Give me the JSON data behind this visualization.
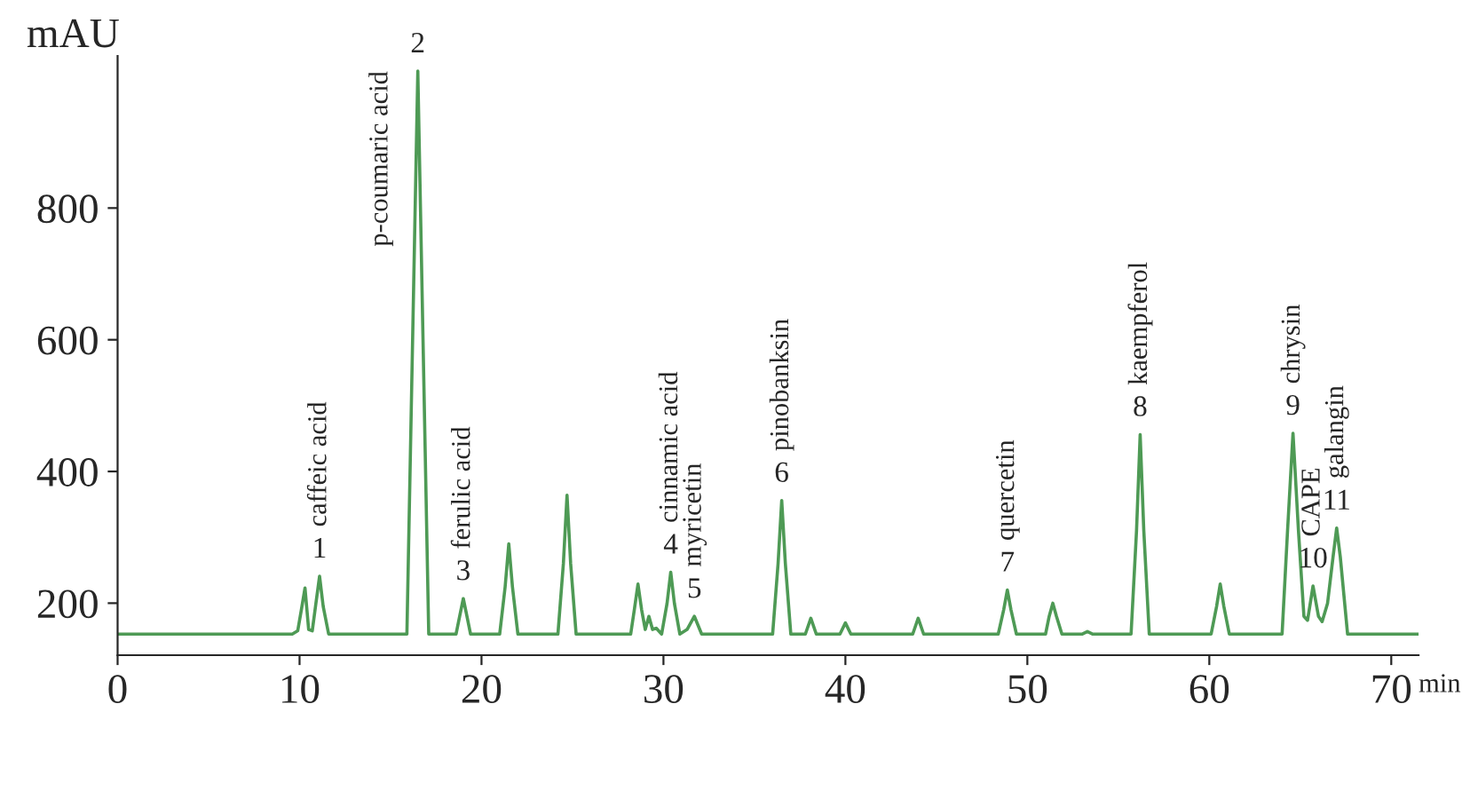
{
  "chart_data": {
    "type": "line",
    "xlabel": "min",
    "ylabel": "mAU",
    "xlim": [
      0,
      71.5
    ],
    "ylim": [
      121,
      1031
    ],
    "xticks": [
      0,
      10,
      20,
      30,
      40,
      50,
      60,
      70
    ],
    "yticks": [
      200,
      400,
      600,
      800
    ],
    "grid": false,
    "legend": false,
    "marker": "none",
    "line_style": "solid",
    "series": [
      {
        "color": "#4e9a55",
        "x": [
          0,
          9.6,
          9.9,
          10.1,
          10.3,
          10.5,
          10.7,
          10.9,
          11.1,
          11.3,
          11.6,
          15.9,
          16.2,
          16.5,
          16.8,
          17.1,
          18.6,
          18.8,
          19.0,
          19.2,
          19.4,
          21.0,
          21.3,
          21.5,
          21.7,
          22.0,
          24.2,
          24.5,
          24.7,
          24.9,
          25.2,
          28.2,
          28.4,
          28.6,
          28.8,
          29.0,
          29.2,
          29.4,
          29.6,
          29.9,
          30.2,
          30.4,
          30.6,
          30.9,
          31.3,
          31.7,
          32.1,
          36.0,
          36.3,
          36.5,
          36.7,
          37.0,
          37.8,
          38.1,
          38.4,
          39.7,
          40.0,
          40.3,
          43.7,
          44.0,
          44.3,
          48.4,
          48.7,
          48.9,
          49.1,
          49.4,
          51.0,
          51.2,
          51.4,
          51.6,
          51.9,
          53.0,
          53.3,
          53.6,
          55.7,
          56.0,
          56.2,
          56.4,
          56.7,
          60.1,
          60.4,
          60.6,
          60.8,
          61.1,
          64.0,
          64.3,
          64.6,
          64.9,
          65.2,
          65.4,
          65.7,
          66.0,
          66.2,
          66.5,
          66.8,
          67.0,
          67.2,
          67.6,
          71.5
        ],
        "values": [
          153,
          153,
          158,
          190,
          223,
          160,
          158,
          200,
          241,
          195,
          153,
          153,
          580,
          1008,
          580,
          153,
          153,
          180,
          207,
          180,
          153,
          153,
          225,
          290,
          225,
          153,
          153,
          260,
          364,
          260,
          153,
          153,
          190,
          229,
          190,
          160,
          180,
          160,
          162,
          153,
          200,
          247,
          200,
          153,
          160,
          180,
          153,
          153,
          260,
          356,
          260,
          153,
          153,
          177,
          153,
          153,
          170,
          153,
          153,
          177,
          153,
          153,
          190,
          220,
          190,
          153,
          153,
          180,
          200,
          180,
          153,
          153,
          157,
          153,
          153,
          310,
          456,
          310,
          153,
          153,
          195,
          229,
          195,
          153,
          153,
          310,
          458,
          310,
          180,
          174,
          226,
          180,
          172,
          200,
          270,
          314,
          270,
          153,
          153
        ]
      }
    ],
    "annotations": [
      "caffeic acid",
      {
        "text": "1",
        "x": 11.1,
        "y": 241
      },
      "p-coumaric acid",
      {
        "text": "2",
        "x": 16.5,
        "y": 1008
      },
      "ferulic acid",
      {
        "text": "3",
        "x": 19.0,
        "y": 207
      },
      "cinnamic acid",
      {
        "text": "4",
        "x": 30.4,
        "y": 247
      },
      "myricetin",
      {
        "text": "5",
        "x": 31.7,
        "y": 180
      },
      "pinobanksin",
      {
        "text": "6",
        "x": 36.5,
        "y": 356
      },
      "quercetin",
      {
        "text": "7",
        "x": 48.9,
        "y": 220
      },
      "kaempferol",
      {
        "text": "8",
        "x": 56.2,
        "y": 456
      },
      "chrysin",
      {
        "text": "9",
        "x": 64.6,
        "y": 458
      },
      "CAPE",
      {
        "text": "10",
        "x": 65.7,
        "y": 226
      },
      "galangin",
      {
        "text": "11",
        "x": 67.0,
        "y": 314
      }
    ]
  }
}
